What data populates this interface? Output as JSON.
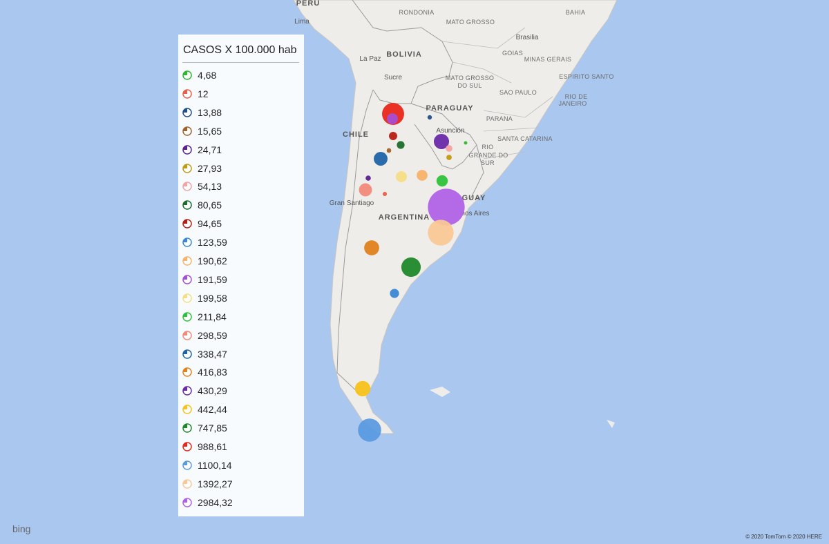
{
  "map_labels": [
    "PERU",
    "Lima",
    "BOLIVIA",
    "La Paz",
    "Sucre",
    "RONDONIA",
    "MATO GROSSO",
    "BAHIA",
    "Brasilia",
    "GOIAS",
    "MINAS GERAIS",
    "ESPIRITO SANTO",
    "MATO GROSSO",
    "DO SUL",
    "SAO PAULO",
    "RIO DE",
    "JANEIRO",
    "PARAGUAY",
    "Asunción",
    "PARANA",
    "SANTA CATARINA",
    "RIO",
    "GRANDE DO",
    "SUR",
    "CHILE",
    "Gran Santiago",
    "ARGENTINA",
    "GUAY",
    "nos Aires"
  ],
  "legend": {
    "title": "CASOS X 100.000 hab",
    "items": [
      {
        "label": "4,68",
        "value": 4.68,
        "color": "#2eb82e"
      },
      {
        "label": "12",
        "value": 12,
        "color": "#e8604c"
      },
      {
        "label": "13,88",
        "value": 13.88,
        "color": "#1f4e8c"
      },
      {
        "label": "15,65",
        "value": 15.65,
        "color": "#a0622d"
      },
      {
        "label": "24,71",
        "value": 24.71,
        "color": "#5b1f8f"
      },
      {
        "label": "27,93",
        "value": 27.93,
        "color": "#c29a12"
      },
      {
        "label": "54,13",
        "value": 54.13,
        "color": "#f4a3a3"
      },
      {
        "label": "80,65",
        "value": 80.65,
        "color": "#1b6e2a"
      },
      {
        "label": "94,65",
        "value": 94.65,
        "color": "#b81d12"
      },
      {
        "label": "123,59",
        "value": 123.59,
        "color": "#3b87d6"
      },
      {
        "label": "190,62",
        "value": 190.62,
        "color": "#f7b26b"
      },
      {
        "label": "191,59",
        "value": 191.59,
        "color": "#a64fd6"
      },
      {
        "label": "199,58",
        "value": 199.58,
        "color": "#f6de86"
      },
      {
        "label": "211,84",
        "value": 211.84,
        "color": "#2fc23a"
      },
      {
        "label": "298,59",
        "value": 298.59,
        "color": "#f28a7a"
      },
      {
        "label": "338,47",
        "value": 338.47,
        "color": "#1f64a8"
      },
      {
        "label": "416,83",
        "value": 416.83,
        "color": "#e0821e"
      },
      {
        "label": "430,29",
        "value": 430.29,
        "color": "#6a2aa8"
      },
      {
        "label": "442,44",
        "value": 442.44,
        "color": "#f7c21a"
      },
      {
        "label": "747,85",
        "value": 747.85,
        "color": "#1f8a2a"
      },
      {
        "label": "988,61",
        "value": 988.61,
        "color": "#e8281a"
      },
      {
        "label": "1100,14",
        "value": 1100.14,
        "color": "#5b9be0"
      },
      {
        "label": "1392,27",
        "value": 1392.27,
        "color": "#f9c896"
      },
      {
        "label": "2984,32",
        "value": 2984.32,
        "color": "#b062e6"
      }
    ]
  },
  "logo": "bing",
  "attribution": "© 2020 TomTom © 2020 HERE"
}
